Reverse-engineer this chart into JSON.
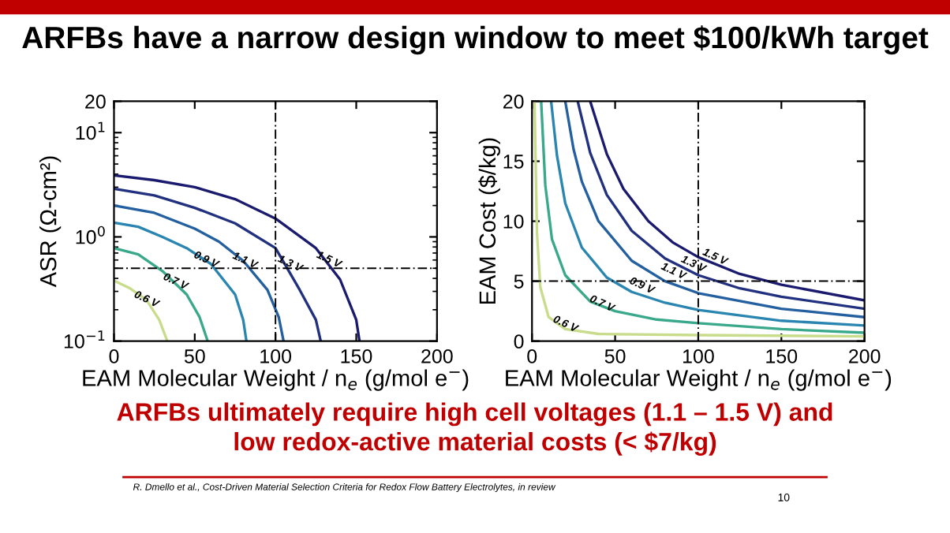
{
  "chart_data": [
    {
      "type": "line",
      "title": "ARFBs have a narrow design window to meet $100/kWh target",
      "xlabel": "EAM Molecular Weight / n$_{e}$ (g/mol e$^{−}$)",
      "ylabel": "ASR (Ω-cm²)",
      "log": true,
      "xlim": [
        0,
        200
      ],
      "xticks": [
        0,
        50,
        100,
        150,
        200
      ],
      "ylim": [
        0.1,
        20
      ],
      "yticks": [
        {
          "value": 0.1,
          "label": "10$^{−1}$"
        },
        {
          "value": 1,
          "label": "10$^{0}$"
        },
        {
          "value": 10,
          "label": "10$^{1}$"
        },
        20
      ],
      "series": [
        {
          "color": "#c8dc8c",
          "x": [
            0,
            10,
            20,
            28,
            33
          ],
          "values": [
            0.38,
            0.32,
            0.25,
            0.16,
            0.1
          ]
        },
        {
          "color": "#3aa88a",
          "x": [
            0,
            15,
            30,
            45,
            53,
            58
          ],
          "values": [
            0.78,
            0.68,
            0.47,
            0.28,
            0.17,
            0.1
          ]
        },
        {
          "color": "#2a86b0",
          "x": [
            0,
            15,
            30,
            45,
            60,
            75,
            80,
            82
          ],
          "values": [
            1.37,
            1.25,
            1.0,
            0.78,
            0.55,
            0.28,
            0.16,
            0.1
          ]
        },
        {
          "color": "#2460a0",
          "x": [
            0,
            25,
            50,
            65,
            80,
            95,
            102,
            105
          ],
          "values": [
            2.0,
            1.7,
            1.2,
            0.9,
            0.59,
            0.31,
            0.17,
            0.1
          ]
        },
        {
          "color": "#22317f",
          "x": [
            0,
            25,
            50,
            75,
            100,
            115,
            125,
            128
          ],
          "values": [
            2.9,
            2.5,
            1.9,
            1.35,
            0.78,
            0.31,
            0.16,
            0.1
          ]
        },
        {
          "color": "#1a1a6e",
          "x": [
            0,
            25,
            50,
            75,
            100,
            125,
            140,
            150,
            152
          ],
          "values": [
            3.9,
            3.5,
            3.0,
            2.3,
            1.5,
            0.78,
            0.39,
            0.16,
            0.1
          ]
        }
      ],
      "annotations": [
        {
          "text": "0.6 V",
          "x": 20,
          "y": 0.25
        },
        {
          "text": "0.7 V",
          "x": 38,
          "y": 0.37
        },
        {
          "text": "0.9 V",
          "x": 57,
          "y": 0.6
        },
        {
          "text": "1.1 V",
          "x": 81,
          "y": 0.59
        },
        {
          "text": "1.3 V",
          "x": 109,
          "y": 0.55
        },
        {
          "text": "1.5 V",
          "x": 133,
          "y": 0.6
        }
      ],
      "ref_lines": [
        {
          "axis": "x",
          "value": 100,
          "line_style": "dashed",
          "color": "#000000"
        },
        {
          "axis": "y",
          "value": 0.5,
          "line_style": "dashed",
          "color": "#000000"
        }
      ],
      "grid": false,
      "legend": false,
      "marker": "none",
      "line_style": "solid"
    },
    {
      "type": "line",
      "xlabel": "EAM Molecular Weight / n$_{e}$ (g/mol e$^{−}$)",
      "ylabel": "EAM Cost ($/kg)",
      "xlim": [
        0,
        200
      ],
      "xticks": [
        0,
        50,
        100,
        150,
        200
      ],
      "ylim": [
        0,
        20
      ],
      "yticks": [
        0,
        5,
        10,
        15,
        20
      ],
      "series": [
        {
          "color": "#c8dc8c",
          "x": [
            1.5,
            3,
            5,
            10,
            20,
            40,
            100,
            200
          ],
          "values": [
            20,
            9,
            4.5,
            2.0,
            1.0,
            0.6,
            0.5,
            0.4
          ]
        },
        {
          "color": "#3aa88a",
          "x": [
            5.5,
            8,
            12,
            20,
            35,
            50,
            75,
            100,
            150,
            200
          ],
          "values": [
            20,
            13,
            8.5,
            5.5,
            3.3,
            2.5,
            1.8,
            1.5,
            1.0,
            0.7
          ]
        },
        {
          "color": "#2a86b0",
          "x": [
            11.5,
            15,
            20,
            30,
            45,
            60,
            80,
            100,
            150,
            200
          ],
          "values": [
            20,
            15.5,
            11.5,
            7.8,
            5.3,
            4.1,
            3.2,
            2.6,
            1.7,
            1.3
          ]
        },
        {
          "color": "#2460a0",
          "x": [
            20,
            25,
            30,
            40,
            60,
            80,
            100,
            150,
            200
          ],
          "values": [
            20,
            16,
            13.3,
            10,
            6.7,
            5.0,
            4.0,
            2.7,
            2.0
          ]
        },
        {
          "color": "#22317f",
          "x": [
            27.5,
            35,
            45,
            60,
            80,
            100,
            125,
            150,
            200
          ],
          "values": [
            20,
            15.7,
            12.2,
            9.2,
            6.9,
            5.5,
            4.4,
            3.7,
            2.7
          ]
        },
        {
          "color": "#1a1a6e",
          "x": [
            35,
            45,
            55,
            70,
            85,
            100,
            125,
            150,
            200
          ],
          "values": [
            20,
            15.6,
            12.7,
            10,
            8.2,
            7.0,
            5.6,
            4.7,
            3.4
          ]
        }
      ],
      "annotations": [
        {
          "text": "0.6 V",
          "x": 20,
          "y": 1.4
        },
        {
          "text": "0.7 V",
          "x": 42,
          "y": 3.1
        },
        {
          "text": "0.9 V",
          "x": 66,
          "y": 4.6
        },
        {
          "text": "1.1 V",
          "x": 85,
          "y": 5.8
        },
        {
          "text": "1.3 V",
          "x": 97,
          "y": 6.4
        },
        {
          "text": "1.5 V",
          "x": 110,
          "y": 7.0
        },
        "ARFBs ultimately require high cell voltages (1.1 – 1.5 V) and\nlow redox-active material costs (< $7/kg)",
        "R. Dmello et al., Cost-Driven Material Selection Criteria for Redox Flow Battery Electrolytes, in review",
        "10"
      ],
      "ref_lines": [
        {
          "axis": "x",
          "value": 100,
          "line_style": "dashed",
          "color": "#000000"
        },
        {
          "axis": "y",
          "value": 5,
          "line_style": "dashed",
          "color": "#000000"
        }
      ],
      "grid": false,
      "legend": false,
      "marker": "none",
      "line_style": "solid"
    }
  ]
}
